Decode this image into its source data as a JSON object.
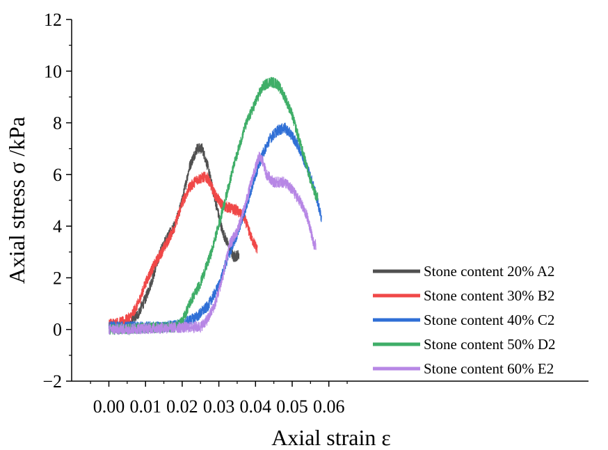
{
  "chart_data": {
    "type": "line",
    "title": "",
    "xlabel": "Axial strain ε",
    "ylabel": "Axial stress σ /kPa",
    "xlim": [
      -0.01,
      0.065
    ],
    "ylim": [
      -2,
      12
    ],
    "xticks": [
      0.0,
      0.01,
      0.02,
      0.03,
      0.04,
      0.05,
      0.06
    ],
    "xtick_labels": [
      "0.00",
      "0.01",
      "0.02",
      "0.03",
      "0.04",
      "0.05",
      "0.06"
    ],
    "yticks": [
      -2,
      0,
      2,
      4,
      6,
      8,
      10,
      12
    ],
    "ytick_labels": [
      "−2",
      "0",
      "2",
      "4",
      "6",
      "8",
      "10",
      "12"
    ],
    "grid": false,
    "legend_position": "bottom-right",
    "series": [
      {
        "name": "Stone content 20% A2",
        "color": "#505050",
        "noise": 0.22,
        "points": [
          [
            0.0,
            0.1
          ],
          [
            0.005,
            0.1
          ],
          [
            0.008,
            0.6
          ],
          [
            0.01,
            1.2
          ],
          [
            0.012,
            2.0
          ],
          [
            0.014,
            3.0
          ],
          [
            0.016,
            3.6
          ],
          [
            0.018,
            4.0
          ],
          [
            0.02,
            5.0
          ],
          [
            0.022,
            6.3
          ],
          [
            0.024,
            7.0
          ],
          [
            0.0255,
            7.0
          ],
          [
            0.027,
            6.3
          ],
          [
            0.029,
            5.0
          ],
          [
            0.031,
            3.8
          ],
          [
            0.033,
            3.1
          ],
          [
            0.034,
            2.8
          ],
          [
            0.0355,
            2.9
          ]
        ]
      },
      {
        "name": "Stone content 30% B2",
        "color": "#f04848",
        "noise": 0.22,
        "points": [
          [
            0.0,
            0.2
          ],
          [
            0.004,
            0.3
          ],
          [
            0.006,
            0.5
          ],
          [
            0.008,
            1.0
          ],
          [
            0.01,
            1.8
          ],
          [
            0.012,
            2.4
          ],
          [
            0.014,
            2.9
          ],
          [
            0.016,
            3.4
          ],
          [
            0.018,
            4.0
          ],
          [
            0.02,
            4.9
          ],
          [
            0.022,
            5.5
          ],
          [
            0.024,
            5.8
          ],
          [
            0.026,
            5.9
          ],
          [
            0.027,
            5.85
          ],
          [
            0.029,
            5.2
          ],
          [
            0.031,
            4.8
          ],
          [
            0.033,
            4.7
          ],
          [
            0.035,
            4.6
          ],
          [
            0.037,
            4.3
          ],
          [
            0.039,
            3.5
          ],
          [
            0.0405,
            3.1
          ]
        ]
      },
      {
        "name": "Stone content 40% C2",
        "color": "#2f6fd6",
        "noise": 0.22,
        "points": [
          [
            0.0,
            0.1
          ],
          [
            0.015,
            0.1
          ],
          [
            0.02,
            0.2
          ],
          [
            0.024,
            0.5
          ],
          [
            0.027,
            0.9
          ],
          [
            0.03,
            1.7
          ],
          [
            0.032,
            2.6
          ],
          [
            0.035,
            3.7
          ],
          [
            0.038,
            5.0
          ],
          [
            0.04,
            6.0
          ],
          [
            0.042,
            6.8
          ],
          [
            0.044,
            7.4
          ],
          [
            0.046,
            7.7
          ],
          [
            0.048,
            7.8
          ],
          [
            0.05,
            7.5
          ],
          [
            0.052,
            7.0
          ],
          [
            0.054,
            6.3
          ],
          [
            0.056,
            5.5
          ],
          [
            0.058,
            4.3
          ]
        ]
      },
      {
        "name": "Stone content 50% D2",
        "color": "#3fae68",
        "noise": 0.22,
        "points": [
          [
            0.0,
            0.0
          ],
          [
            0.018,
            0.1
          ],
          [
            0.02,
            0.3
          ],
          [
            0.022,
            1.0
          ],
          [
            0.025,
            1.8
          ],
          [
            0.028,
            3.0
          ],
          [
            0.031,
            4.6
          ],
          [
            0.034,
            6.3
          ],
          [
            0.037,
            7.8
          ],
          [
            0.04,
            8.8
          ],
          [
            0.042,
            9.4
          ],
          [
            0.044,
            9.6
          ],
          [
            0.046,
            9.5
          ],
          [
            0.048,
            9.0
          ],
          [
            0.05,
            8.3
          ],
          [
            0.052,
            7.3
          ],
          [
            0.054,
            6.3
          ],
          [
            0.056,
            5.3
          ],
          [
            0.057,
            5.1
          ]
        ]
      },
      {
        "name": "Stone content 60% E2",
        "color": "#b787e5",
        "noise": 0.22,
        "points": [
          [
            0.0,
            0.0
          ],
          [
            0.025,
            0.1
          ],
          [
            0.027,
            0.4
          ],
          [
            0.029,
            1.0
          ],
          [
            0.031,
            2.0
          ],
          [
            0.033,
            3.3
          ],
          [
            0.035,
            3.8
          ],
          [
            0.037,
            4.7
          ],
          [
            0.039,
            5.8
          ],
          [
            0.041,
            6.7
          ],
          [
            0.042,
            6.5
          ],
          [
            0.043,
            6.0
          ],
          [
            0.045,
            5.7
          ],
          [
            0.048,
            5.7
          ],
          [
            0.05,
            5.4
          ],
          [
            0.052,
            5.0
          ],
          [
            0.054,
            4.4
          ],
          [
            0.055,
            3.9
          ],
          [
            0.056,
            3.2
          ],
          [
            0.0565,
            3.3
          ]
        ]
      }
    ]
  }
}
